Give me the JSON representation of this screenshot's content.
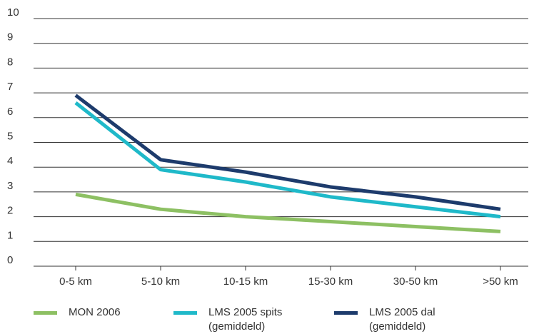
{
  "chart_data": {
    "type": "line",
    "categories": [
      "0-5 km",
      "5-10 km",
      "10-15 km",
      "15-30 km",
      "30-50 km",
      ">50 km"
    ],
    "series": [
      {
        "name": "MON 2006",
        "color": "#8dc063",
        "values": [
          2.9,
          2.3,
          2.0,
          1.8,
          1.6,
          1.4
        ]
      },
      {
        "name": "LMS 2005 spits (gemiddeld)",
        "color": "#1fb9c9",
        "values": [
          6.6,
          3.9,
          3.4,
          2.8,
          2.4,
          2.0
        ]
      },
      {
        "name": "LMS 2005 dal (gemiddeld)",
        "color": "#1d3b6c",
        "values": [
          6.9,
          4.3,
          3.8,
          3.2,
          2.8,
          2.3
        ]
      }
    ],
    "ylim": [
      0,
      10
    ],
    "yticks": [
      0,
      1,
      2,
      3,
      4,
      5,
      6,
      7,
      8,
      9,
      10
    ],
    "grid": true
  }
}
